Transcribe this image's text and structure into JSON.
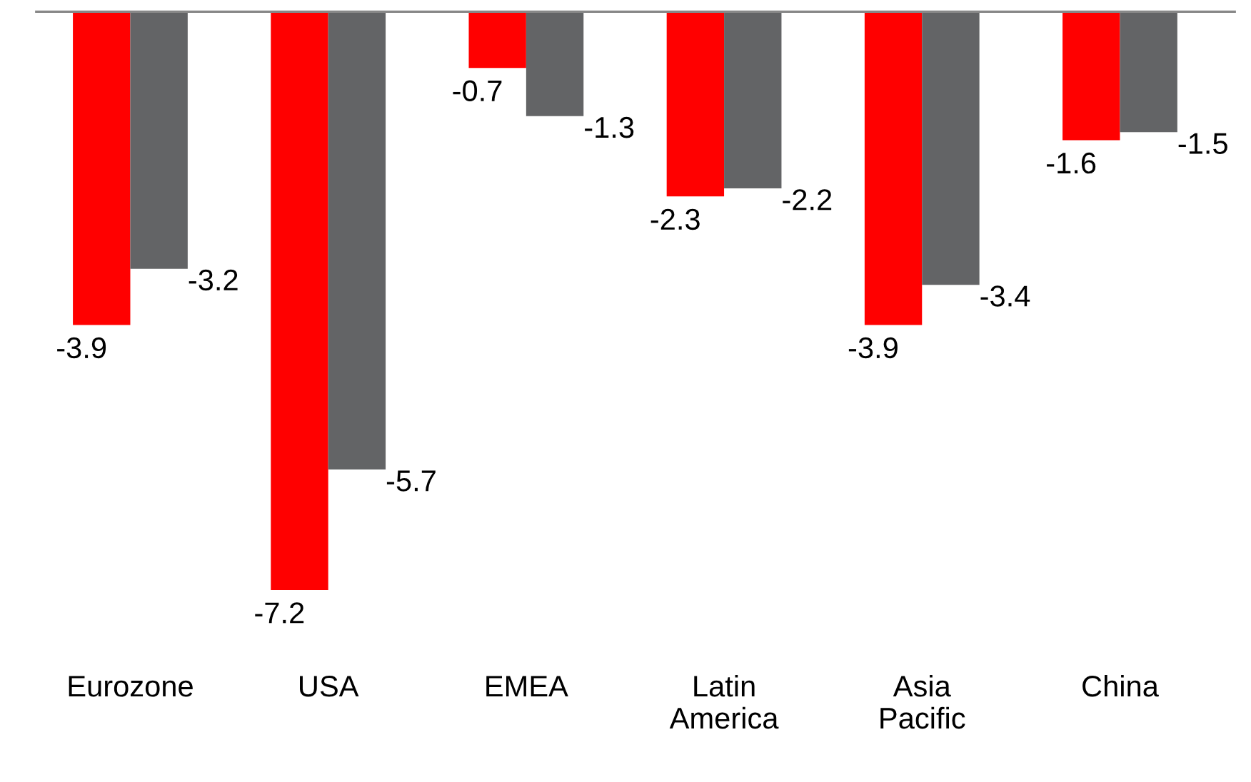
{
  "chart_data": {
    "type": "bar",
    "categories": [
      "Eurozone",
      "USA",
      "EMEA",
      "Latin America",
      "Asia Pacific",
      "China"
    ],
    "series": [
      {
        "color": "#ff0000",
        "values": [
          -3.9,
          -7.2,
          -0.7,
          -2.3,
          -3.9,
          -1.6
        ]
      },
      {
        "color": "#636466",
        "values": [
          -3.2,
          -5.7,
          -1.3,
          -2.2,
          -3.4,
          -1.5
        ]
      }
    ],
    "data_labels": true,
    "grid": false,
    "legend": false
  }
}
